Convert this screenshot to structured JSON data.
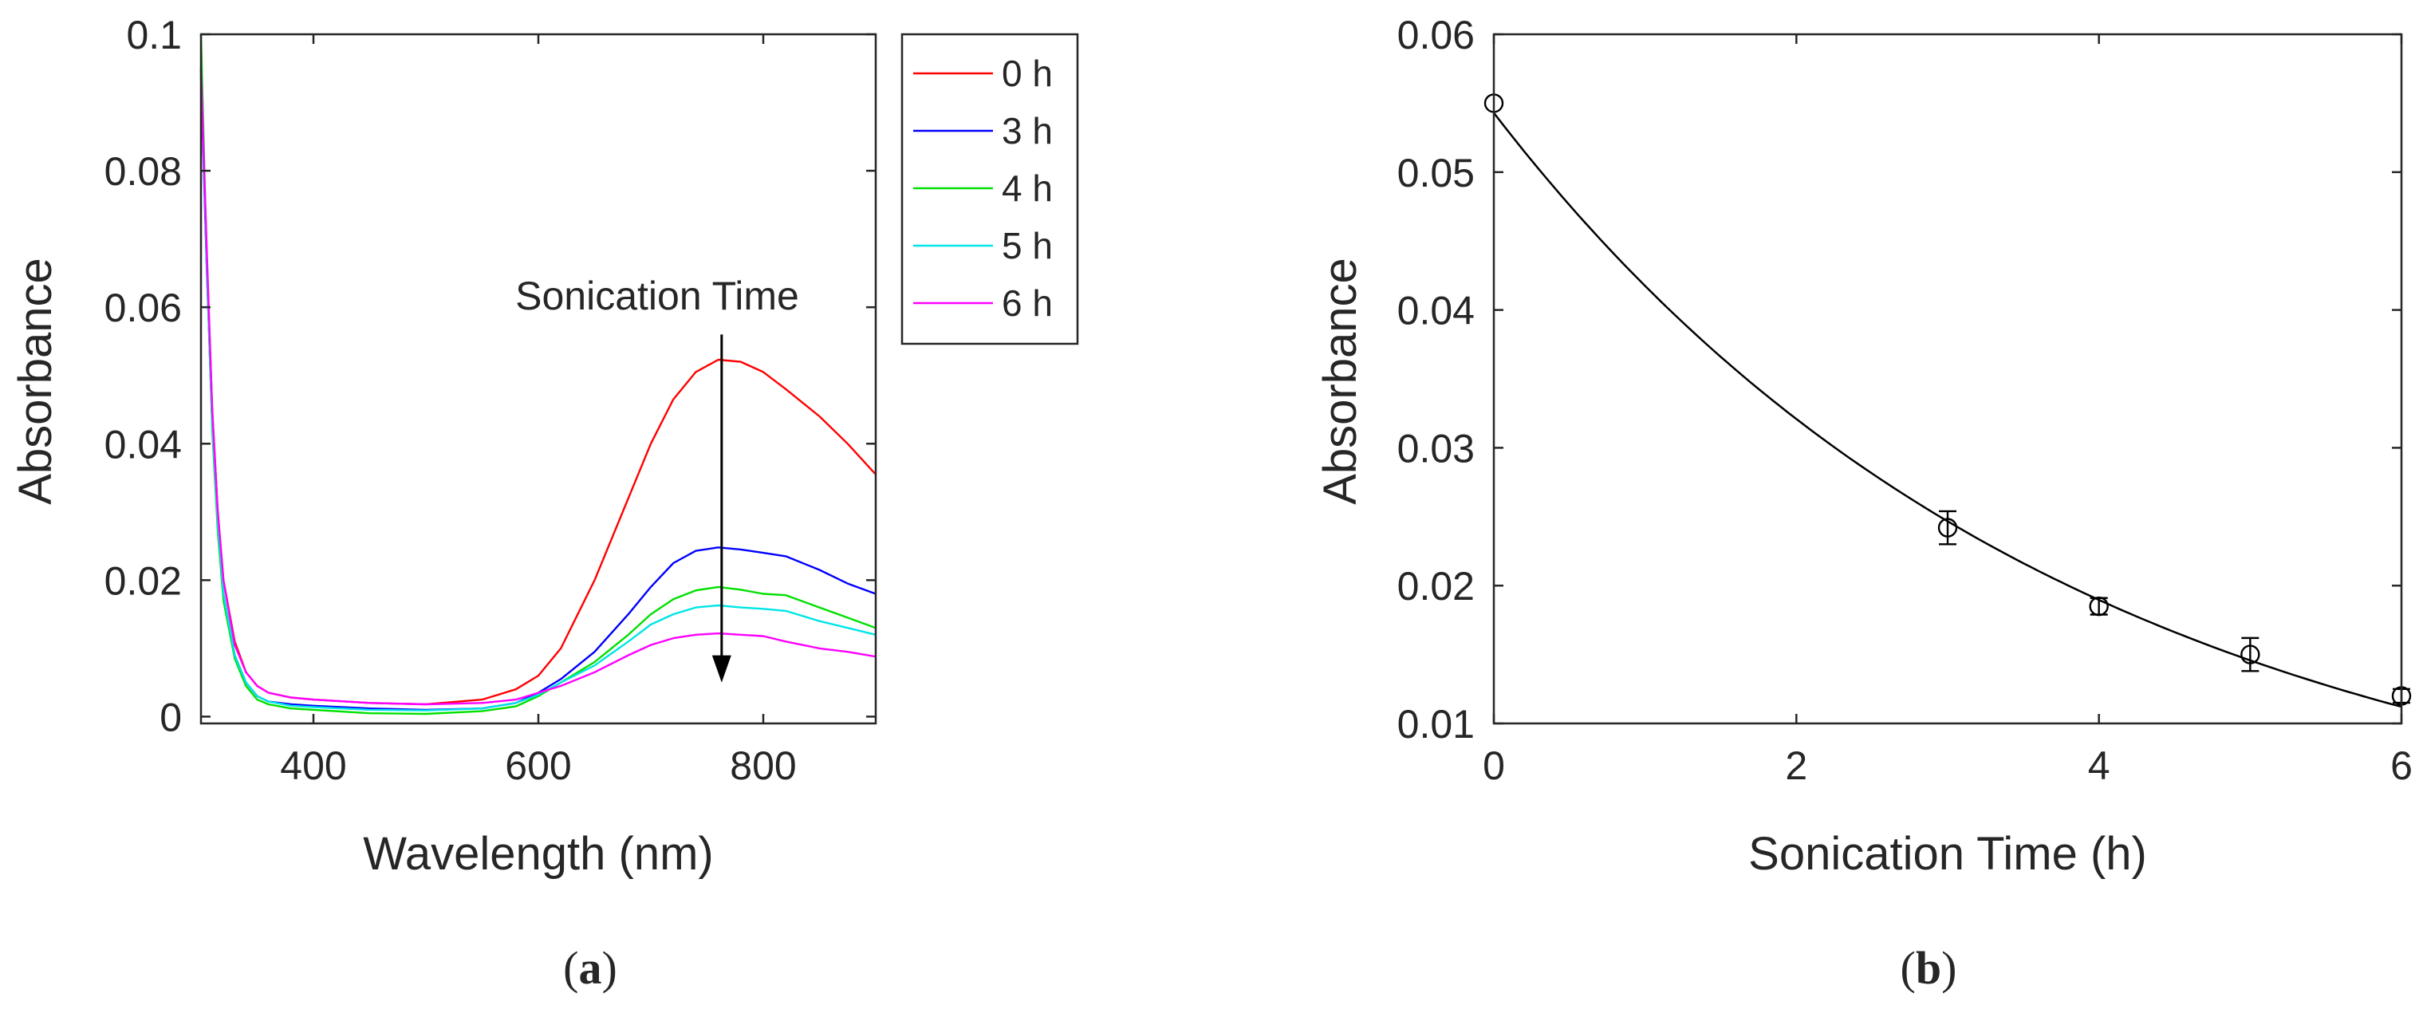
{
  "chart_data": [
    {
      "panel": "a",
      "caption": "(a)",
      "type": "line",
      "title": "",
      "xlabel": "Wavelength (nm)",
      "ylabel": "Absorbance",
      "xlim": [
        300,
        900
      ],
      "ylim": [
        -0.001,
        0.1
      ],
      "xticks": [
        400,
        600,
        800
      ],
      "xtick_labels": [
        "400",
        "600",
        "800"
      ],
      "yticks": [
        0,
        0.02,
        0.04,
        0.06,
        0.08,
        0.1
      ],
      "ytick_labels": [
        "0",
        "0.02",
        "0.04",
        "0.06",
        "0.08",
        "0.1"
      ],
      "grid": false,
      "legend_position": "outside-top-right",
      "x": [
        300,
        305,
        310,
        315,
        320,
        330,
        340,
        350,
        360,
        380,
        400,
        450,
        500,
        550,
        580,
        600,
        620,
        650,
        680,
        700,
        720,
        740,
        760,
        780,
        800,
        820,
        850,
        875,
        900
      ],
      "series": [
        {
          "name": "0 h",
          "color": "#ff0000",
          "values": [
            0.095,
            0.068,
            0.045,
            0.03,
            0.02,
            0.011,
            0.0065,
            0.0045,
            0.0035,
            0.0028,
            0.0025,
            0.002,
            0.0018,
            0.0025,
            0.004,
            0.006,
            0.01,
            0.02,
            0.032,
            0.04,
            0.0465,
            0.0505,
            0.0523,
            0.052,
            0.0505,
            0.048,
            0.044,
            0.04,
            0.0355
          ]
        },
        {
          "name": "3 h",
          "color": "#0000ff",
          "values": [
            0.094,
            0.066,
            0.043,
            0.028,
            0.018,
            0.009,
            0.005,
            0.003,
            0.0022,
            0.0018,
            0.0016,
            0.0012,
            0.001,
            0.0012,
            0.002,
            0.0035,
            0.0055,
            0.0095,
            0.015,
            0.019,
            0.0225,
            0.0243,
            0.0248,
            0.0245,
            0.024,
            0.0235,
            0.0215,
            0.0195,
            0.018
          ]
        },
        {
          "name": "4 h",
          "color": "#00e000",
          "values": [
            0.1,
            0.067,
            0.042,
            0.027,
            0.017,
            0.0085,
            0.0045,
            0.0025,
            0.0018,
            0.0012,
            0.001,
            0.0005,
            0.0004,
            0.0008,
            0.0015,
            0.003,
            0.005,
            0.008,
            0.012,
            0.015,
            0.0172,
            0.0185,
            0.019,
            0.0186,
            0.018,
            0.0178,
            0.016,
            0.0145,
            0.013
          ]
        },
        {
          "name": "5 h",
          "color": "#00e5e5",
          "values": [
            0.095,
            0.067,
            0.043,
            0.028,
            0.018,
            0.009,
            0.005,
            0.003,
            0.0022,
            0.0016,
            0.0014,
            0.001,
            0.0009,
            0.0012,
            0.002,
            0.0032,
            0.005,
            0.0075,
            0.011,
            0.0135,
            0.015,
            0.016,
            0.0163,
            0.016,
            0.0158,
            0.0155,
            0.014,
            0.013,
            0.012
          ]
        },
        {
          "name": "6 h",
          "color": "#ff00ff",
          "values": [
            0.095,
            0.069,
            0.045,
            0.03,
            0.02,
            0.0105,
            0.0065,
            0.0045,
            0.0035,
            0.0028,
            0.0025,
            0.002,
            0.0018,
            0.002,
            0.0025,
            0.0035,
            0.0045,
            0.0065,
            0.009,
            0.0105,
            0.0115,
            0.012,
            0.0122,
            0.012,
            0.0118,
            0.011,
            0.01,
            0.0095,
            0.0088
          ]
        }
      ],
      "annotations": [
        {
          "text": "Sonication Time",
          "arrow_x": 763,
          "arrow_from_y": 0.056,
          "arrow_to_y": 0.005
        }
      ]
    },
    {
      "panel": "b",
      "caption": "(b)",
      "type": "scatter",
      "title": "",
      "xlabel": "Sonication Time (h)",
      "ylabel": "Absorbance",
      "xlim": [
        0,
        6
      ],
      "ylim": [
        0.01,
        0.06
      ],
      "xticks": [
        0,
        2,
        4,
        6
      ],
      "xtick_labels": [
        "0",
        "2",
        "4",
        "6"
      ],
      "yticks": [
        0.01,
        0.02,
        0.03,
        0.04,
        0.05,
        0.06
      ],
      "ytick_labels": [
        "0.01",
        "0.02",
        "0.03",
        "0.04",
        "0.05",
        "0.06"
      ],
      "grid": false,
      "points": {
        "x": [
          0,
          3,
          4,
          5,
          6
        ],
        "y": [
          0.055,
          0.0242,
          0.0185,
          0.015,
          0.012
        ],
        "err": [
          0,
          0.0012,
          0.0006,
          0.0012,
          0.0005
        ]
      },
      "fit": {
        "kind": "exponential",
        "a": 0.0543,
        "k": 0.263
      }
    }
  ]
}
